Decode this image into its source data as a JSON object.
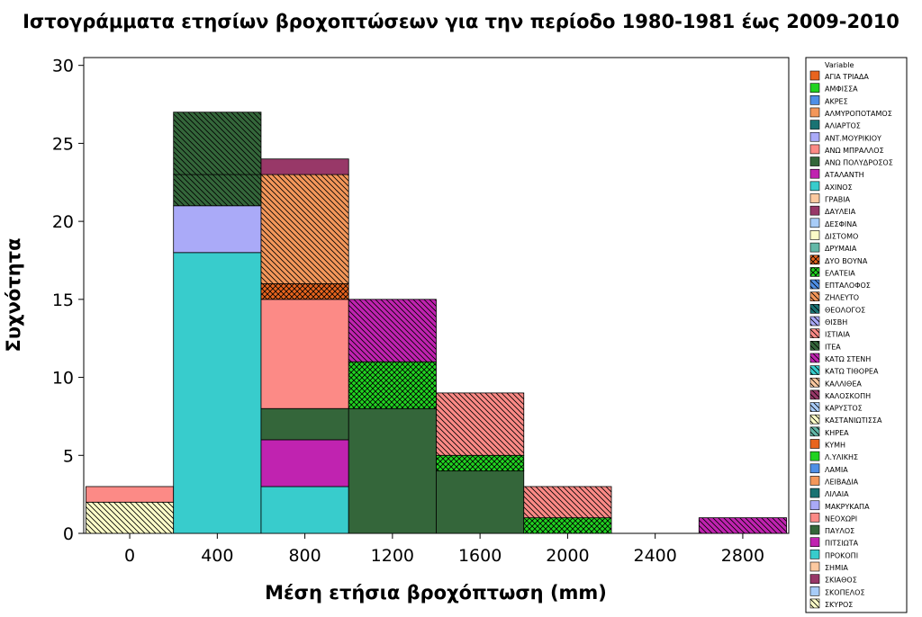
{
  "chart_data": {
    "type": "bar",
    "stacked": true,
    "title": "Ιστογράμματα ετησίων βροχοπτώσεων για την περίοδο 1980-1981 έως 2009-2010",
    "xlabel": "Μέση ετήσια βροχόπτωση (mm)",
    "ylabel": "Συχνότητα",
    "xlim": [
      -210,
      3010
    ],
    "ylim": [
      0,
      30.5
    ],
    "bin_width": 400,
    "x_ticks": [
      0,
      400,
      800,
      1200,
      1600,
      2000,
      2400,
      2800
    ],
    "y_ticks": [
      0,
      5,
      10,
      15,
      20,
      25,
      30
    ],
    "grid": false,
    "legend_title": "Variable",
    "legend_position": "right",
    "legend": [
      {
        "name": "ΑΓΙΑ ΤΡΙΑΔΑ",
        "color": "#e8641e",
        "pattern": "none"
      },
      {
        "name": "ΑΜΦΙΣΣΑ",
        "color": "#21d321",
        "pattern": "none"
      },
      {
        "name": "ΑΚΡΕΣ",
        "color": "#4f8fe6",
        "pattern": "none"
      },
      {
        "name": "ΑΛΜΥΡΟΠΟΤΑΜΟΣ",
        "color": "#f4975a",
        "pattern": "none"
      },
      {
        "name": "ΑΛΙΑΡΤΟΣ",
        "color": "#1a7373",
        "pattern": "none"
      },
      {
        "name": "ΑΝΤ.ΜΟΥΡΙΚΙΟΥ",
        "color": "#aaaaf8",
        "pattern": "none"
      },
      {
        "name": "ΑΝΩ ΜΠΡΑΛΛΟΣ",
        "color": "#fc8a86",
        "pattern": "none"
      },
      {
        "name": "ΑΝΩ ΠΟΛΥΔΡΟΣΟΣ",
        "color": "#34663a",
        "pattern": "none"
      },
      {
        "name": "ΑΤΑΛΑΝΤΗ",
        "color": "#c023b0",
        "pattern": "none"
      },
      {
        "name": "ΑΧΙΝΟΣ",
        "color": "#38cccc",
        "pattern": "none"
      },
      {
        "name": "ΓΡΑΒΙΑ",
        "color": "#fcc9a0",
        "pattern": "none"
      },
      {
        "name": "ΔΑΥΛΕΙΑ",
        "color": "#983868",
        "pattern": "none"
      },
      {
        "name": "ΔΕΣΦΙΝΑ",
        "color": "#a8ccf8",
        "pattern": "none"
      },
      {
        "name": "ΔΙΣΤΟΜΟ",
        "color": "#fcfcc8",
        "pattern": "none"
      },
      {
        "name": "ΔΡΥΜΑΙΑ",
        "color": "#62b8a8",
        "pattern": "none"
      },
      {
        "name": "ΔΥΟ ΒΟΥΝΑ",
        "color": "#e8641e",
        "pattern": "cross"
      },
      {
        "name": "ΕΛΑΤΕΙΑ",
        "color": "#21d321",
        "pattern": "cross"
      },
      {
        "name": "ΕΠΤΑΛΟΦΟΣ",
        "color": "#4f8fe6",
        "pattern": "bdiag"
      },
      {
        "name": "ΖΗΛΕΥΤΟ",
        "color": "#f4975a",
        "pattern": "bdiag"
      },
      {
        "name": "ΘΕΟΛΟΓΟΣ",
        "color": "#1a7373",
        "pattern": "bdiag"
      },
      {
        "name": "ΘΙΣΒΗ",
        "color": "#aaaaf8",
        "pattern": "bdiag"
      },
      {
        "name": "ΙΣΤΙΑΙΑ",
        "color": "#fc8a86",
        "pattern": "bdiag"
      },
      {
        "name": "ΙΤΕΑ",
        "color": "#34663a",
        "pattern": "bdiag"
      },
      {
        "name": "ΚΑΤΩ ΣΤΕΝΗ",
        "color": "#c023b0",
        "pattern": "bdiag"
      },
      {
        "name": "ΚΑΤΩ ΤΙΘΟΡΕΑ",
        "color": "#38cccc",
        "pattern": "bdiag"
      },
      {
        "name": "ΚΑΛΛΙΘΕΑ",
        "color": "#fcc9a0",
        "pattern": "bdiag"
      },
      {
        "name": "ΚΑΛΟΣΚΟΠΗ",
        "color": "#983868",
        "pattern": "bdiag"
      },
      {
        "name": "ΚΑΡΥΣΤΟΣ",
        "color": "#a8ccf8",
        "pattern": "bdiag"
      },
      {
        "name": "ΚΑΣΤΑΝΙΩΤΙΣΣΑ",
        "color": "#fcfcc8",
        "pattern": "bdiag"
      },
      {
        "name": "ΚΗΡΕΑ",
        "color": "#62b8a8",
        "pattern": "bdiag"
      },
      {
        "name": "ΚΥΜΗ",
        "color": "#e8641e",
        "pattern": "none"
      },
      {
        "name": "Λ.ΥΛΙΚΗΣ",
        "color": "#21d321",
        "pattern": "none"
      },
      {
        "name": "ΛΑΜΙΑ",
        "color": "#4f8fe6",
        "pattern": "none"
      },
      {
        "name": "ΛΕΙΒΑΔΙΑ",
        "color": "#f4975a",
        "pattern": "none"
      },
      {
        "name": "ΛΙΛΑΙΑ",
        "color": "#1a7373",
        "pattern": "none"
      },
      {
        "name": "ΜΑΚΡΥΚΑΠΑ",
        "color": "#aaaaf8",
        "pattern": "none"
      },
      {
        "name": "ΝΕΟΧΩΡΙ",
        "color": "#fc8a86",
        "pattern": "none"
      },
      {
        "name": "ΠΑΥΛΟΣ",
        "color": "#34663a",
        "pattern": "none"
      },
      {
        "name": "ΠΙΤΣΙΩΤΑ",
        "color": "#c023b0",
        "pattern": "none"
      },
      {
        "name": "ΠΡΟΚΟΠΙ",
        "color": "#38cccc",
        "pattern": "none"
      },
      {
        "name": "ΣΗΜΙΑ",
        "color": "#fcc9a0",
        "pattern": "none"
      },
      {
        "name": "ΣΚΙΑΘΟΣ",
        "color": "#983868",
        "pattern": "none"
      },
      {
        "name": "ΣΚΟΠΕΛΟΣ",
        "color": "#a8ccf8",
        "pattern": "none"
      },
      {
        "name": "ΣΚΥΡΟΣ",
        "color": "#fcfcc8",
        "pattern": "bdiag"
      }
    ],
    "segments": [
      {
        "bin": 0,
        "y0": 0,
        "y1": 2,
        "color": "#fcfcc8",
        "pattern": "bdiag"
      },
      {
        "bin": 0,
        "y0": 2,
        "y1": 3,
        "color": "#fc8a86",
        "pattern": "none"
      },
      {
        "bin": 400,
        "y0": 0,
        "y1": 18,
        "color": "#38cccc",
        "pattern": "none"
      },
      {
        "bin": 400,
        "y0": 18,
        "y1": 21,
        "color": "#aaaaf8",
        "pattern": "none"
      },
      {
        "bin": 400,
        "y0": 21,
        "y1": 23,
        "color": "#34663a",
        "pattern": "bdiag"
      },
      {
        "bin": 400,
        "y0": 23,
        "y1": 27,
        "color": "#34663a",
        "pattern": "bdiag"
      },
      {
        "bin": 800,
        "y0": 0,
        "y1": 3,
        "color": "#38cccc",
        "pattern": "none"
      },
      {
        "bin": 800,
        "y0": 3,
        "y1": 6,
        "color": "#c023b0",
        "pattern": "none"
      },
      {
        "bin": 800,
        "y0": 6,
        "y1": 8,
        "color": "#34663a",
        "pattern": "none"
      },
      {
        "bin": 800,
        "y0": 8,
        "y1": 15,
        "color": "#fc8a86",
        "pattern": "none"
      },
      {
        "bin": 800,
        "y0": 15,
        "y1": 16,
        "color": "#e8641e",
        "pattern": "cross"
      },
      {
        "bin": 800,
        "y0": 16,
        "y1": 23,
        "color": "#f4975a",
        "pattern": "bdiag"
      },
      {
        "bin": 800,
        "y0": 23,
        "y1": 24,
        "color": "#983868",
        "pattern": "none"
      },
      {
        "bin": 1200,
        "y0": 0,
        "y1": 8,
        "color": "#34663a",
        "pattern": "none"
      },
      {
        "bin": 1200,
        "y0": 8,
        "y1": 11,
        "color": "#21d321",
        "pattern": "cross"
      },
      {
        "bin": 1200,
        "y0": 11,
        "y1": 15,
        "color": "#c023b0",
        "pattern": "bdiag"
      },
      {
        "bin": 1600,
        "y0": 0,
        "y1": 4,
        "color": "#34663a",
        "pattern": "none"
      },
      {
        "bin": 1600,
        "y0": 4,
        "y1": 5,
        "color": "#21d321",
        "pattern": "cross"
      },
      {
        "bin": 1600,
        "y0": 5,
        "y1": 9,
        "color": "#fc8a86",
        "pattern": "bdiag"
      },
      {
        "bin": 2000,
        "y0": 0,
        "y1": 1,
        "color": "#21d321",
        "pattern": "cross"
      },
      {
        "bin": 2000,
        "y0": 1,
        "y1": 3,
        "color": "#fc8a86",
        "pattern": "bdiag"
      },
      {
        "bin": 2800,
        "y0": 0,
        "y1": 1,
        "color": "#c023b0",
        "pattern": "bdiag"
      }
    ]
  }
}
